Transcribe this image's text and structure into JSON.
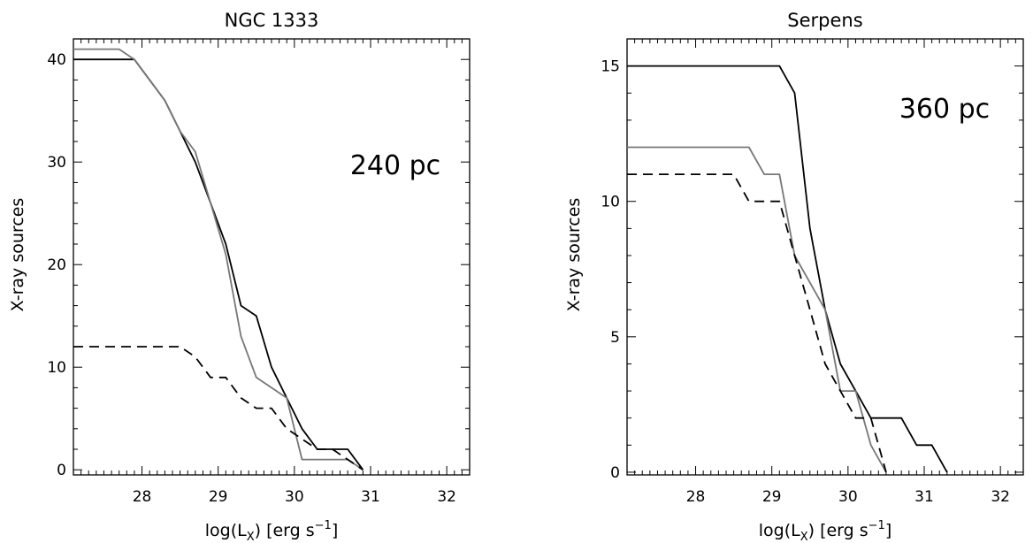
{
  "chart_data": [
    {
      "type": "line",
      "title": "NGC 1333",
      "annotation": "240 pc",
      "xlabel": "log(L",
      "xlabel_sub": "X",
      "xlabel_tail": ") [erg s",
      "xlabel_sup": "−1",
      "xlabel_end": "]",
      "ylabel": "X-ray sources",
      "xlim": [
        27.1,
        32.3
      ],
      "ylim": [
        -0.5,
        42
      ],
      "xticks": [
        28,
        29,
        30,
        31,
        32
      ],
      "yticks": [
        0,
        10,
        20,
        30,
        40
      ],
      "series": [
        {
          "style": "solid",
          "color": "#000000",
          "x": [
            27.1,
            27.9,
            28.3,
            28.5,
            28.7,
            28.9,
            29.1,
            29.3,
            29.5,
            29.7,
            29.9,
            30.1,
            30.3,
            30.5,
            30.7,
            30.9
          ],
          "y": [
            40,
            40,
            36,
            33,
            30,
            26,
            22,
            16,
            15,
            10,
            7,
            4,
            2,
            2,
            2,
            0
          ]
        },
        {
          "style": "solid",
          "color": "#777777",
          "x": [
            27.1,
            27.7,
            27.9,
            28.3,
            28.5,
            28.7,
            28.9,
            29.1,
            29.3,
            29.5,
            29.7,
            29.9,
            30.1,
            30.3,
            30.5,
            30.7,
            30.9
          ],
          "y": [
            41,
            41,
            40,
            36,
            33,
            31,
            26,
            21,
            13,
            9,
            8,
            7,
            1,
            1,
            1,
            1,
            0
          ]
        },
        {
          "style": "dashed",
          "color": "#000000",
          "x": [
            27.1,
            28.5,
            28.7,
            28.9,
            29.1,
            29.3,
            29.5,
            29.7,
            29.9,
            30.1,
            30.3,
            30.5,
            30.7,
            30.9
          ],
          "y": [
            12,
            12,
            11,
            9,
            9,
            7,
            6,
            6,
            4,
            3,
            2,
            2,
            1,
            0
          ]
        }
      ]
    },
    {
      "type": "line",
      "title": "Serpens",
      "annotation": "360 pc",
      "xlabel": "log(L",
      "xlabel_sub": "X",
      "xlabel_tail": ") [erg s",
      "xlabel_sup": "−1",
      "xlabel_end": "]",
      "ylabel": "X-ray sources",
      "xlim": [
        27.1,
        32.3
      ],
      "ylim": [
        -0.1,
        16
      ],
      "xticks": [
        28,
        29,
        30,
        31,
        32
      ],
      "yticks": [
        0,
        5,
        10,
        15
      ],
      "series": [
        {
          "style": "solid",
          "color": "#000000",
          "x": [
            27.1,
            29.1,
            29.3,
            29.5,
            29.7,
            29.9,
            30.1,
            30.3,
            30.5,
            30.7,
            30.9,
            31.1,
            31.3
          ],
          "y": [
            15,
            15,
            14,
            9,
            6,
            4,
            3,
            2,
            2,
            2,
            1,
            1,
            0
          ]
        },
        {
          "style": "solid",
          "color": "#777777",
          "x": [
            27.1,
            28.7,
            28.9,
            29.1,
            29.3,
            29.5,
            29.7,
            29.9,
            30.1,
            30.3,
            30.5
          ],
          "y": [
            12,
            12,
            11,
            11,
            8,
            7,
            6,
            3,
            3,
            1,
            0
          ]
        },
        {
          "style": "dashed",
          "color": "#000000",
          "x": [
            27.1,
            28.5,
            28.7,
            28.9,
            29.1,
            29.3,
            29.5,
            29.7,
            29.9,
            30.1,
            30.3,
            30.5
          ],
          "y": [
            11,
            11,
            10,
            10,
            10,
            8,
            6,
            4,
            3,
            2,
            2,
            0
          ]
        }
      ]
    }
  ]
}
